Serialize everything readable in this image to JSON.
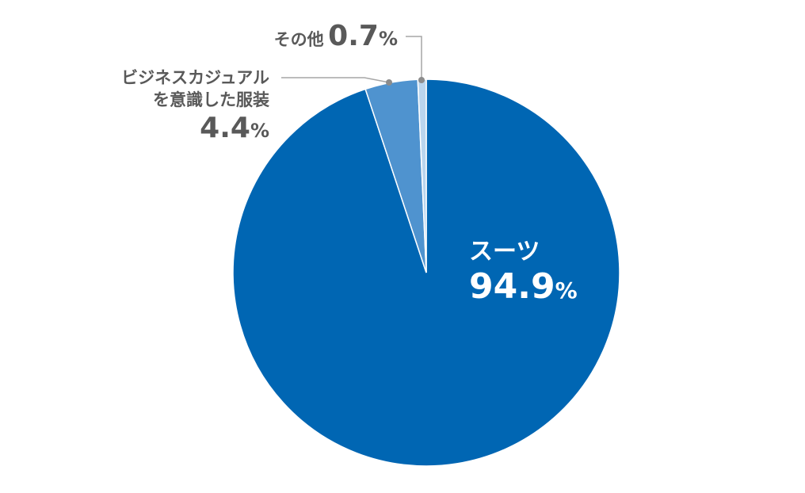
{
  "chart_data": {
    "type": "pie",
    "title": "",
    "start_angle_deg": 0,
    "direction": "clockwise",
    "slices": [
      {
        "label": "スーツ",
        "value": 94.9,
        "value_text": "94.9",
        "color": "#0066b3"
      },
      {
        "label_lines": [
          "ビジネスカジュアル",
          "を意識した服装"
        ],
        "value": 4.4,
        "value_text": "4.4",
        "color": "#4f93cf"
      },
      {
        "label": "その他",
        "value": 0.7,
        "value_text": "0.7",
        "color": "#bad5ee"
      }
    ],
    "percent_sign": "%"
  }
}
